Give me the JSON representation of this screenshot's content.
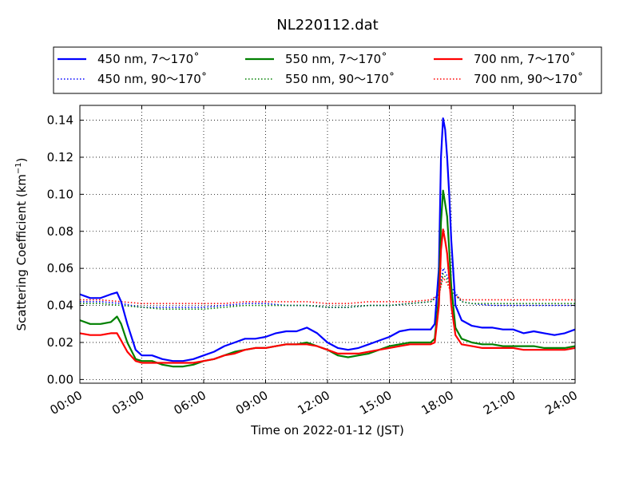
{
  "chart_data": {
    "type": "line",
    "title": "NL220112.dat",
    "xlabel": "Time on 2022-01-12 (JST)",
    "ylabel": "Scattering Coefficient (km",
    "ylabel_sup": "−1",
    "ylabel_close": ")",
    "xlim": [
      0,
      24
    ],
    "ylim": [
      -0.002,
      0.148
    ],
    "x_ticks": [
      0,
      3,
      6,
      9,
      12,
      15,
      18,
      21,
      24
    ],
    "x_tick_labels": [
      "00:00",
      "03:00",
      "06:00",
      "09:00",
      "12:00",
      "15:00",
      "18:00",
      "21:00",
      "24:00"
    ],
    "y_ticks": [
      0.0,
      0.02,
      0.04,
      0.06,
      0.08,
      0.1,
      0.12,
      0.14
    ],
    "y_tick_labels": [
      "0.00",
      "0.02",
      "0.04",
      "0.06",
      "0.08",
      "0.10",
      "0.12",
      "0.14"
    ],
    "grid": true,
    "legend_position": "top (above plot)",
    "series": [
      {
        "name": "450 nm, 7～170˚",
        "color": "#0000ff",
        "style": "solid",
        "x": [
          0,
          0.5,
          1.0,
          1.5,
          1.8,
          2.0,
          2.3,
          2.7,
          3.0,
          3.5,
          4.0,
          4.5,
          5.0,
          5.5,
          6.0,
          6.5,
          7.0,
          7.5,
          8.0,
          8.5,
          9.0,
          9.5,
          10.0,
          10.5,
          11.0,
          11.5,
          12.0,
          12.5,
          13.0,
          13.5,
          14.0,
          14.5,
          15.0,
          15.5,
          16.0,
          16.5,
          17.0,
          17.2,
          17.4,
          17.5,
          17.6,
          17.7,
          17.8,
          17.9,
          18.0,
          18.2,
          18.5,
          19.0,
          19.5,
          20.0,
          20.5,
          21.0,
          21.5,
          22.0,
          22.5,
          23.0,
          23.5,
          24.0
        ],
        "y": [
          0.046,
          0.044,
          0.044,
          0.046,
          0.047,
          0.042,
          0.03,
          0.016,
          0.013,
          0.013,
          0.011,
          0.01,
          0.01,
          0.011,
          0.013,
          0.015,
          0.018,
          0.02,
          0.022,
          0.022,
          0.023,
          0.025,
          0.026,
          0.026,
          0.028,
          0.025,
          0.02,
          0.017,
          0.016,
          0.017,
          0.019,
          0.021,
          0.023,
          0.026,
          0.027,
          0.027,
          0.027,
          0.03,
          0.06,
          0.12,
          0.141,
          0.135,
          0.12,
          0.1,
          0.075,
          0.04,
          0.032,
          0.029,
          0.028,
          0.028,
          0.027,
          0.027,
          0.025,
          0.026,
          0.025,
          0.024,
          0.025,
          0.027
        ]
      },
      {
        "name": "450 nm, 90～170˚",
        "color": "#0000ff",
        "style": "dotted",
        "x": [
          0,
          1.0,
          2.0,
          3.0,
          4.0,
          5.0,
          6.0,
          7.0,
          8.0,
          9.0,
          10.0,
          11.0,
          12.0,
          13.0,
          14.0,
          15.0,
          16.0,
          17.0,
          17.4,
          17.6,
          17.8,
          18.0,
          18.5,
          19.0,
          20.0,
          21.0,
          22.0,
          23.0,
          24.0
        ],
        "y": [
          0.042,
          0.042,
          0.041,
          0.039,
          0.039,
          0.039,
          0.039,
          0.04,
          0.041,
          0.041,
          0.04,
          0.04,
          0.039,
          0.039,
          0.04,
          0.04,
          0.041,
          0.042,
          0.046,
          0.06,
          0.056,
          0.05,
          0.042,
          0.041,
          0.04,
          0.04,
          0.04,
          0.04,
          0.04
        ]
      },
      {
        "name": "550 nm, 7～170˚",
        "color": "#008000",
        "style": "solid",
        "x": [
          0,
          0.5,
          1.0,
          1.5,
          1.8,
          2.0,
          2.3,
          2.7,
          3.0,
          3.5,
          4.0,
          4.5,
          5.0,
          5.5,
          6.0,
          6.5,
          7.0,
          7.5,
          8.0,
          8.5,
          9.0,
          9.5,
          10.0,
          10.5,
          11.0,
          11.5,
          12.0,
          12.5,
          13.0,
          13.5,
          14.0,
          14.5,
          15.0,
          15.5,
          16.0,
          16.5,
          17.0,
          17.2,
          17.4,
          17.5,
          17.6,
          17.7,
          17.8,
          17.9,
          18.0,
          18.2,
          18.5,
          19.0,
          19.5,
          20.0,
          20.5,
          21.0,
          21.5,
          22.0,
          22.5,
          23.0,
          23.5,
          24.0
        ],
        "y": [
          0.032,
          0.03,
          0.03,
          0.031,
          0.034,
          0.03,
          0.02,
          0.011,
          0.01,
          0.01,
          0.008,
          0.007,
          0.007,
          0.008,
          0.01,
          0.011,
          0.013,
          0.015,
          0.016,
          0.017,
          0.017,
          0.018,
          0.019,
          0.019,
          0.02,
          0.018,
          0.016,
          0.013,
          0.012,
          0.013,
          0.014,
          0.016,
          0.018,
          0.019,
          0.02,
          0.02,
          0.02,
          0.022,
          0.045,
          0.085,
          0.102,
          0.095,
          0.088,
          0.07,
          0.05,
          0.028,
          0.022,
          0.02,
          0.019,
          0.019,
          0.018,
          0.018,
          0.018,
          0.018,
          0.017,
          0.017,
          0.017,
          0.018
        ]
      },
      {
        "name": "550 nm, 90～170˚",
        "color": "#008000",
        "style": "dotted",
        "x": [
          0,
          1.0,
          2.0,
          3.0,
          4.0,
          5.0,
          6.0,
          7.0,
          8.0,
          9.0,
          10.0,
          11.0,
          12.0,
          13.0,
          14.0,
          15.0,
          16.0,
          17.0,
          17.4,
          17.6,
          17.8,
          18.0,
          18.5,
          19.0,
          20.0,
          21.0,
          22.0,
          23.0,
          24.0
        ],
        "y": [
          0.041,
          0.041,
          0.04,
          0.039,
          0.038,
          0.038,
          0.038,
          0.039,
          0.04,
          0.04,
          0.04,
          0.04,
          0.039,
          0.039,
          0.04,
          0.04,
          0.041,
          0.042,
          0.045,
          0.057,
          0.054,
          0.048,
          0.042,
          0.041,
          0.041,
          0.041,
          0.041,
          0.041,
          0.041
        ]
      },
      {
        "name": "700 nm, 7～170˚",
        "color": "#ff0000",
        "style": "solid",
        "x": [
          0,
          0.5,
          1.0,
          1.5,
          1.8,
          2.0,
          2.3,
          2.7,
          3.0,
          3.5,
          4.0,
          4.5,
          5.0,
          5.5,
          6.0,
          6.5,
          7.0,
          7.5,
          8.0,
          8.5,
          9.0,
          9.5,
          10.0,
          10.5,
          11.0,
          11.5,
          12.0,
          12.5,
          13.0,
          13.5,
          14.0,
          14.5,
          15.0,
          15.5,
          16.0,
          16.5,
          17.0,
          17.2,
          17.4,
          17.5,
          17.6,
          17.7,
          17.8,
          17.9,
          18.0,
          18.2,
          18.5,
          19.0,
          19.5,
          20.0,
          20.5,
          21.0,
          21.5,
          22.0,
          22.5,
          23.0,
          23.5,
          24.0
        ],
        "y": [
          0.025,
          0.024,
          0.024,
          0.025,
          0.025,
          0.021,
          0.015,
          0.01,
          0.009,
          0.009,
          0.009,
          0.009,
          0.009,
          0.009,
          0.01,
          0.011,
          0.013,
          0.014,
          0.016,
          0.017,
          0.017,
          0.018,
          0.019,
          0.019,
          0.019,
          0.018,
          0.016,
          0.014,
          0.014,
          0.014,
          0.015,
          0.016,
          0.017,
          0.018,
          0.019,
          0.019,
          0.019,
          0.02,
          0.04,
          0.07,
          0.081,
          0.075,
          0.068,
          0.055,
          0.04,
          0.024,
          0.019,
          0.018,
          0.017,
          0.017,
          0.017,
          0.017,
          0.016,
          0.016,
          0.016,
          0.016,
          0.016,
          0.017
        ]
      },
      {
        "name": "700 nm, 90～170˚",
        "color": "#ff0000",
        "style": "dotted",
        "x": [
          0,
          1.0,
          2.0,
          3.0,
          4.0,
          5.0,
          6.0,
          7.0,
          8.0,
          9.0,
          10.0,
          11.0,
          12.0,
          13.0,
          14.0,
          15.0,
          16.0,
          17.0,
          17.4,
          17.6,
          17.8,
          18.0,
          18.5,
          19.0,
          20.0,
          21.0,
          22.0,
          23.0,
          24.0
        ],
        "y": [
          0.043,
          0.043,
          0.042,
          0.041,
          0.041,
          0.041,
          0.041,
          0.041,
          0.042,
          0.042,
          0.042,
          0.042,
          0.041,
          0.041,
          0.042,
          0.042,
          0.042,
          0.043,
          0.046,
          0.055,
          0.052,
          0.047,
          0.043,
          0.043,
          0.043,
          0.043,
          0.043,
          0.043,
          0.043
        ]
      }
    ]
  }
}
